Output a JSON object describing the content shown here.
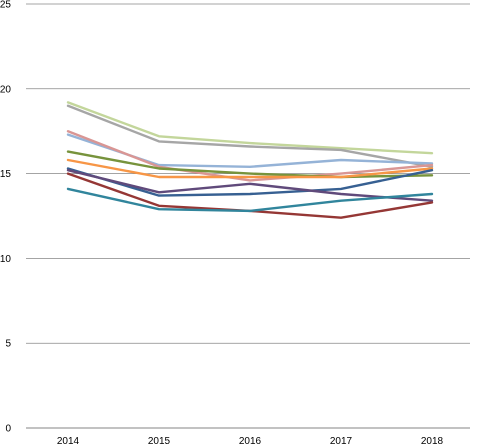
{
  "chart_data": {
    "type": "line",
    "title": "",
    "xlabel": "",
    "ylabel": "",
    "x": [
      "2014",
      "2015",
      "2016",
      "2017",
      "2018"
    ],
    "ylim": [
      0,
      25
    ],
    "yticks": [
      "0",
      "5",
      "10",
      "15",
      "20",
      "25"
    ],
    "grid": true,
    "legend": "none",
    "series": [
      {
        "color": "#c3d69b",
        "values": [
          19.2,
          17.2,
          16.8,
          16.5,
          16.2
        ]
      },
      {
        "color": "#a6a6a6",
        "values": [
          19.0,
          16.9,
          16.6,
          16.4,
          15.4
        ]
      },
      {
        "color": "#95b3d7",
        "values": [
          17.3,
          15.5,
          15.4,
          15.8,
          15.6
        ]
      },
      {
        "color": "#d99694",
        "values": [
          17.5,
          15.4,
          14.6,
          15.0,
          15.5
        ]
      },
      {
        "color": "#77933c",
        "values": [
          16.3,
          15.3,
          15.0,
          14.8,
          14.9
        ]
      },
      {
        "color": "#f79646",
        "values": [
          15.8,
          14.8,
          14.8,
          14.8,
          15.3
        ]
      },
      {
        "color": "#376092",
        "values": [
          15.3,
          13.7,
          13.8,
          14.1,
          15.2
        ]
      },
      {
        "color": "#604a7b",
        "values": [
          15.2,
          13.9,
          14.4,
          13.8,
          13.4
        ]
      },
      {
        "color": "#953735",
        "values": [
          15.0,
          13.1,
          12.8,
          12.4,
          13.3
        ]
      },
      {
        "color": "#31859c",
        "values": [
          14.1,
          12.9,
          12.8,
          13.4,
          13.8
        ]
      }
    ]
  }
}
